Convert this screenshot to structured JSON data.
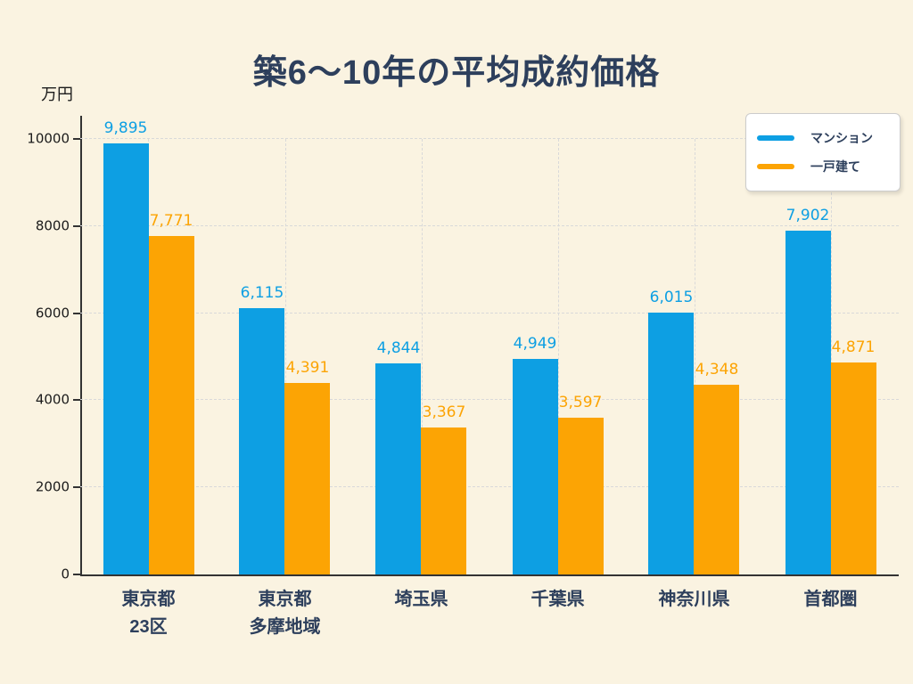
{
  "chart_data": {
    "type": "bar",
    "title": "築6〜10年の平均成約価格",
    "unit_label": "万円",
    "categories": [
      "東京都\n23区",
      "東京都\n多摩地域",
      "埼玉県",
      "千葉県",
      "神奈川県",
      "首都圏"
    ],
    "series": [
      {
        "name": "マンション",
        "color": "#0d9fe3",
        "values": [
          9895,
          6115,
          4844,
          4949,
          6015,
          7902
        ],
        "value_labels": [
          "9,895",
          "6,115",
          "4,844",
          "4,949",
          "6,015",
          "7,902"
        ]
      },
      {
        "name": "一戸建て",
        "color": "#fca404",
        "values": [
          7771,
          4391,
          3367,
          3597,
          4348,
          4871
        ],
        "value_labels": [
          "7,771",
          "4,391",
          "3,367",
          "3,597",
          "4,348",
          "4,871"
        ]
      }
    ],
    "ylim": [
      0,
      10000
    ],
    "yticks": [
      0,
      2000,
      4000,
      6000,
      8000,
      10000
    ],
    "ytick_labels": [
      "0",
      "2000",
      "4000",
      "6000",
      "8000",
      "10000"
    ],
    "grid": true,
    "legend_position": "top-right"
  },
  "colors": {
    "background": "#faf3e1",
    "title_text": "#2d3f5c",
    "axis_line": "#333333",
    "gridline": "#d9d9d9",
    "tick_text": "#1b1b1b",
    "legend_bg": "#ffffff",
    "legend_border": "#cccccc"
  }
}
